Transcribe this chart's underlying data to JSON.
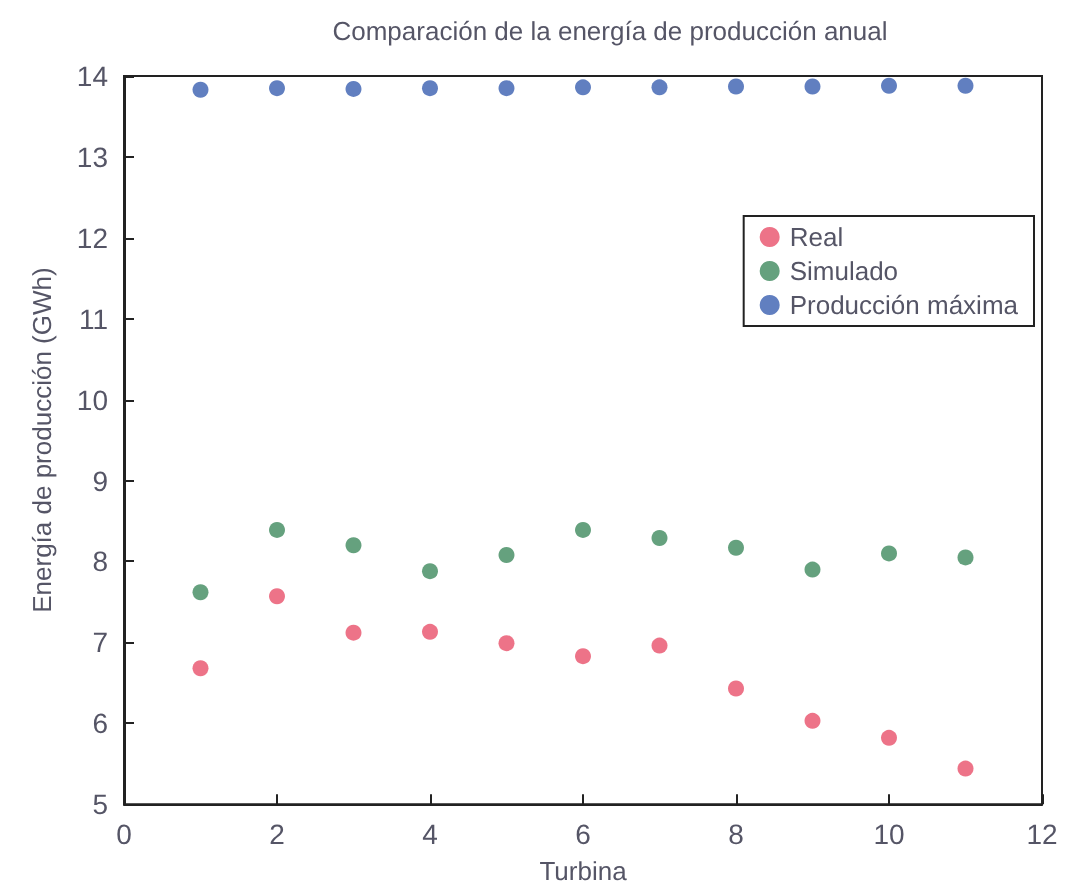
{
  "chart_data": {
    "type": "scatter",
    "title": "Comparación de la energía de producción anual",
    "xlabel": "Turbina",
    "ylabel": "Energía de producción (GWh)",
    "x": [
      1,
      2,
      3,
      4,
      5,
      6,
      7,
      8,
      9,
      10,
      11
    ],
    "series": [
      {
        "name": "Real",
        "color": "#e8506a",
        "values": [
          6.68,
          7.57,
          7.12,
          7.13,
          6.99,
          6.83,
          6.96,
          6.43,
          6.03,
          5.82,
          5.44
        ]
      },
      {
        "name": "Simulado",
        "color": "#3e8a5e",
        "values": [
          7.62,
          8.39,
          8.2,
          7.88,
          8.08,
          8.39,
          8.29,
          8.17,
          7.9,
          8.1,
          8.05
        ]
      },
      {
        "name": "Producción máxima",
        "color": "#3a5fb0",
        "values": [
          13.83,
          13.85,
          13.84,
          13.85,
          13.85,
          13.86,
          13.86,
          13.87,
          13.87,
          13.88,
          13.88
        ]
      }
    ],
    "xlim": [
      0,
      12
    ],
    "xticks": [
      0,
      2,
      4,
      6,
      8,
      10,
      12
    ],
    "ylim": [
      5,
      14
    ],
    "yticks": [
      5,
      6,
      7,
      8,
      9,
      10,
      11,
      12,
      13,
      14
    ],
    "grid": false,
    "legend": "right",
    "marker": "circle"
  }
}
